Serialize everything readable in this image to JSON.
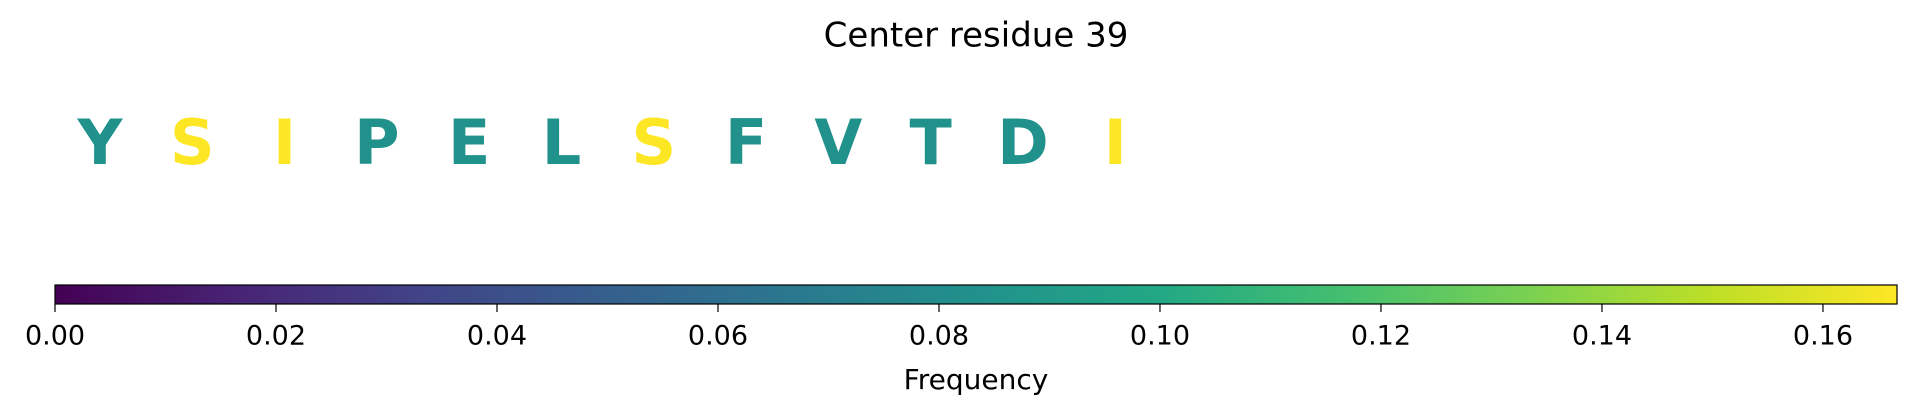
{
  "chart_data": {
    "type": "sequence",
    "title": "Center residue 39",
    "categories": [
      "Y",
      "S",
      "I",
      "P",
      "E",
      "L",
      "S",
      "F",
      "V",
      "T",
      "D",
      "I"
    ],
    "values": [
      0.0833,
      0.1667,
      0.1667,
      0.0833,
      0.0833,
      0.0833,
      0.1667,
      0.0833,
      0.0833,
      0.0833,
      0.0833,
      0.1667
    ],
    "colormap": "viridis",
    "clim": [
      0,
      0.1667
    ],
    "cticks": [
      {
        "value": 0,
        "label": "0.00"
      },
      {
        "value": 0.02,
        "label": "0.02"
      },
      {
        "value": 0.04,
        "label": "0.04"
      },
      {
        "value": 0.06,
        "label": "0.06"
      },
      {
        "value": 0.08,
        "label": "0.08"
      },
      {
        "value": 0.1,
        "label": "0.10"
      },
      {
        "value": 0.12,
        "label": "0.12"
      },
      {
        "value": 0.14,
        "label": "0.14"
      },
      {
        "value": 0.16,
        "label": "0.16"
      }
    ],
    "colorbar_label": "Frequency"
  }
}
